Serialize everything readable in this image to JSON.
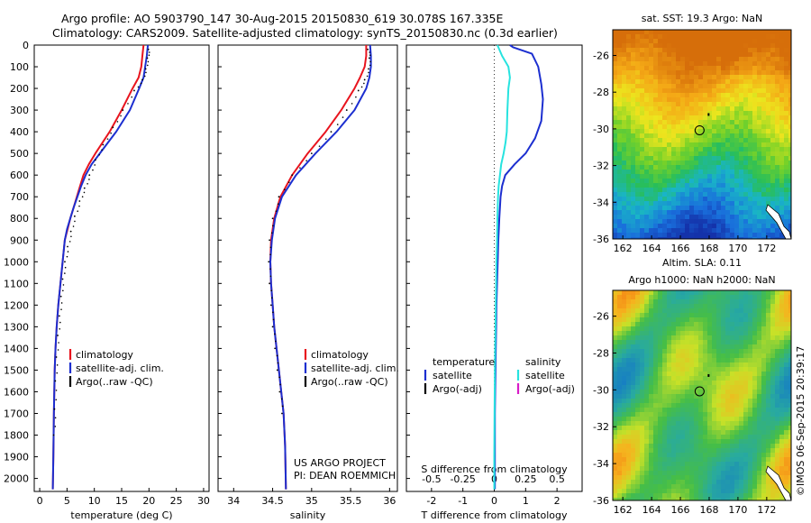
{
  "header": {
    "line1": "Argo profile: AO 5903790_147 30-Aug-2015 20150830_619 30.078S 167.335E",
    "line2": "Climatology: CARS2009. Satellite-adjusted climatology: synTS_20150830.nc (0.3d earlier)"
  },
  "credit": "©IMOS 06-Sep-2015 20:39:17",
  "colors": {
    "climatology": "#e8141e",
    "satellite": "#1c2fd0",
    "argo": "#000000",
    "salinity_satellite": "#27e3df",
    "salinity_argo": "#d81cc8"
  },
  "chart_data": [
    {
      "type": "line",
      "xlabel": "temperature (deg C)",
      "xticks": [
        "0",
        "5",
        "10",
        "15",
        "20",
        "25",
        "30"
      ],
      "yticks": [
        "0",
        "100",
        "200",
        "300",
        "400",
        "500",
        "600",
        "700",
        "800",
        "900",
        "1000",
        "1100",
        "1200",
        "1300",
        "1400",
        "1500",
        "1600",
        "1700",
        "1800",
        "1900",
        "2000"
      ],
      "xlim": [
        -1,
        31
      ],
      "ylim": [
        2060,
        0
      ],
      "legend": [
        "climatology",
        "satellite-adj. clim.",
        "Argo(..raw -QC)"
      ],
      "legend_position": "lower-center",
      "series": [
        {
          "name": "climatology",
          "x": [
            19,
            18.8,
            18.6,
            18.1,
            17,
            15,
            12.8,
            11.5,
            10.2,
            9,
            8,
            7.4,
            6.8,
            6.2,
            5.6,
            5.1,
            4.6,
            4.2,
            3.8,
            3.4,
            3.1,
            2.9,
            2.75,
            2.6,
            2.5,
            2.4
          ],
          "y": [
            0,
            50,
            100,
            150,
            200,
            300,
            400,
            450,
            500,
            550,
            600,
            650,
            700,
            750,
            800,
            850,
            900,
            1000,
            1100,
            1200,
            1300,
            1400,
            1500,
            1700,
            1900,
            2050
          ]
        },
        {
          "name": "satellite-adj. clim.",
          "x": [
            19.8,
            19.6,
            19.3,
            19,
            18.2,
            16.5,
            14,
            12.5,
            11,
            9.5,
            8.4,
            7.6,
            6.9,
            6.2,
            5.6,
            5,
            4.6,
            4.2,
            3.8,
            3.4,
            3.1,
            2.9,
            2.75,
            2.6,
            2.5,
            2.4
          ],
          "y": [
            0,
            50,
            100,
            150,
            200,
            300,
            400,
            450,
            500,
            550,
            600,
            650,
            700,
            750,
            800,
            850,
            900,
            1000,
            1100,
            1200,
            1300,
            1400,
            1500,
            1700,
            1900,
            2050
          ]
        },
        {
          "name": "Argo(..raw -QC)",
          "x": [
            19.9,
            19.7,
            19.4,
            18.8,
            17.3,
            15.2,
            13.4,
            11.6,
            10.2,
            9.1,
            8.2,
            7.3,
            6.4,
            5.7,
            5.1,
            4.6,
            4.2,
            3.9,
            3.6,
            3.3,
            3.05,
            2.85,
            2.7,
            2.55
          ],
          "y": [
            20,
            60,
            110,
            160,
            210,
            300,
            380,
            460,
            530,
            600,
            660,
            720,
            790,
            860,
            930,
            1000,
            1080,
            1160,
            1250,
            1340,
            1440,
            1550,
            1680,
            1800
          ]
        }
      ]
    },
    {
      "type": "line",
      "xlabel": "salinity",
      "xticks": [
        "34",
        "34.5",
        "35",
        "35.5",
        "36"
      ],
      "yticks": [],
      "xlim": [
        33.8,
        36.1
      ],
      "ylim": [
        2060,
        0
      ],
      "legend": [
        "climatology",
        "satellite-adj. clim.",
        "Argo(..raw -QC)"
      ],
      "legend_position": "lower-center",
      "annotations": [
        "US ARGO PROJECT",
        "PI: DEAN ROEMMICH"
      ],
      "series": [
        {
          "name": "climatology",
          "x": [
            35.7,
            35.7,
            35.68,
            35.62,
            35.55,
            35.38,
            35.18,
            34.95,
            34.75,
            34.6,
            34.52,
            34.48,
            34.47,
            34.48,
            34.5,
            34.52,
            34.55,
            34.58,
            34.61,
            34.64,
            34.66,
            34.67
          ],
          "y": [
            0,
            50,
            100,
            150,
            200,
            300,
            400,
            500,
            600,
            700,
            800,
            900,
            1000,
            1100,
            1200,
            1300,
            1400,
            1500,
            1600,
            1700,
            1850,
            2050
          ]
        },
        {
          "name": "satellite-adj. clim.",
          "x": [
            35.75,
            35.76,
            35.76,
            35.74,
            35.7,
            35.55,
            35.32,
            35.05,
            34.8,
            34.62,
            34.53,
            34.49,
            34.47,
            34.48,
            34.5,
            34.52,
            34.55,
            34.58,
            34.61,
            34.64,
            34.66,
            34.67
          ],
          "y": [
            0,
            50,
            100,
            150,
            200,
            300,
            400,
            500,
            600,
            700,
            800,
            900,
            1000,
            1100,
            1200,
            1300,
            1400,
            1500,
            1600,
            1700,
            1850,
            2050
          ]
        },
        {
          "name": "Argo(..raw -QC)",
          "x": [
            35.72,
            35.74,
            35.73,
            35.68,
            35.6,
            35.45,
            35.25,
            35.0,
            34.75,
            34.58,
            34.5,
            34.46,
            34.45,
            34.46,
            34.48,
            34.5,
            34.53,
            34.56,
            34.59,
            34.62
          ],
          "y": [
            20,
            60,
            110,
            160,
            210,
            300,
            400,
            500,
            600,
            700,
            800,
            900,
            1000,
            1100,
            1200,
            1300,
            1400,
            1500,
            1600,
            1700
          ]
        }
      ]
    },
    {
      "type": "line",
      "xlabel": "T difference from climatology",
      "xlabel_top": "S difference from climatology",
      "xticks": [
        "-2",
        "-1",
        "0",
        "1",
        "2"
      ],
      "xticks_top": [
        "-0.5",
        "-0.25",
        "0",
        "0.25",
        "0.5"
      ],
      "yticks": [],
      "xlim": [
        -2.8,
        2.8
      ],
      "ylim": [
        2060,
        0
      ],
      "legend": [
        "temperature",
        "satellite",
        "Argo(-adj)",
        "salinity",
        "satellite",
        "Argo(-adj)"
      ],
      "legend_position": "lower-center",
      "series": [
        {
          "name": "temperature satellite",
          "x": [
            0.5,
            0.6,
            1.2,
            1.4,
            1.5,
            1.55,
            1.5,
            1.3,
            1.0,
            0.65,
            0.35,
            0.25,
            0.2,
            0.16,
            0.13,
            0.11,
            0.09,
            0.07,
            0.06,
            0.05,
            0.04,
            0.03,
            0.02,
            0.02,
            0.02
          ],
          "y": [
            0,
            10,
            40,
            100,
            180,
            250,
            350,
            430,
            500,
            550,
            600,
            650,
            700,
            800,
            900,
            1000,
            1100,
            1200,
            1300,
            1400,
            1500,
            1600,
            1700,
            1900,
            2050
          ]
        },
        {
          "name": "salinity satellite",
          "x": [
            0.1,
            0.25,
            0.45,
            0.5,
            0.45,
            0.42,
            0.4,
            0.36,
            0.3,
            0.22,
            0.18,
            0.14,
            0.12,
            0.1,
            0.09,
            0.07,
            0.06,
            0.05,
            0.04,
            0.03,
            0.02,
            0.01,
            0.0,
            0.0
          ],
          "y": [
            0,
            50,
            100,
            150,
            200,
            300,
            400,
            450,
            500,
            550,
            600,
            650,
            700,
            800,
            900,
            1000,
            1100,
            1200,
            1300,
            1400,
            1500,
            1700,
            1900,
            2050
          ]
        }
      ]
    }
  ],
  "maps": [
    {
      "type": "heatmap",
      "title": "sat. SST: 19.3 Argo: NaN",
      "xticks": [
        "162",
        "164",
        "166",
        "168",
        "170",
        "172"
      ],
      "yticks": [
        "-26",
        "-28",
        "-30",
        "-32",
        "-34",
        "-36"
      ],
      "xlim": [
        161.3,
        173.7
      ],
      "ylim": [
        -36.0,
        -24.6
      ]
    },
    {
      "type": "heatmap",
      "title": "Altim. SLA: 0.11",
      "subtitle": "Argo h1000: NaN h2000: NaN",
      "xticks": [
        "162",
        "164",
        "166",
        "168",
        "170",
        "172"
      ],
      "yticks": [
        "-26",
        "-28",
        "-30",
        "-32",
        "-34",
        "-36"
      ],
      "xlim": [
        161.3,
        173.7
      ],
      "ylim": [
        -36.0,
        -24.6
      ]
    }
  ]
}
